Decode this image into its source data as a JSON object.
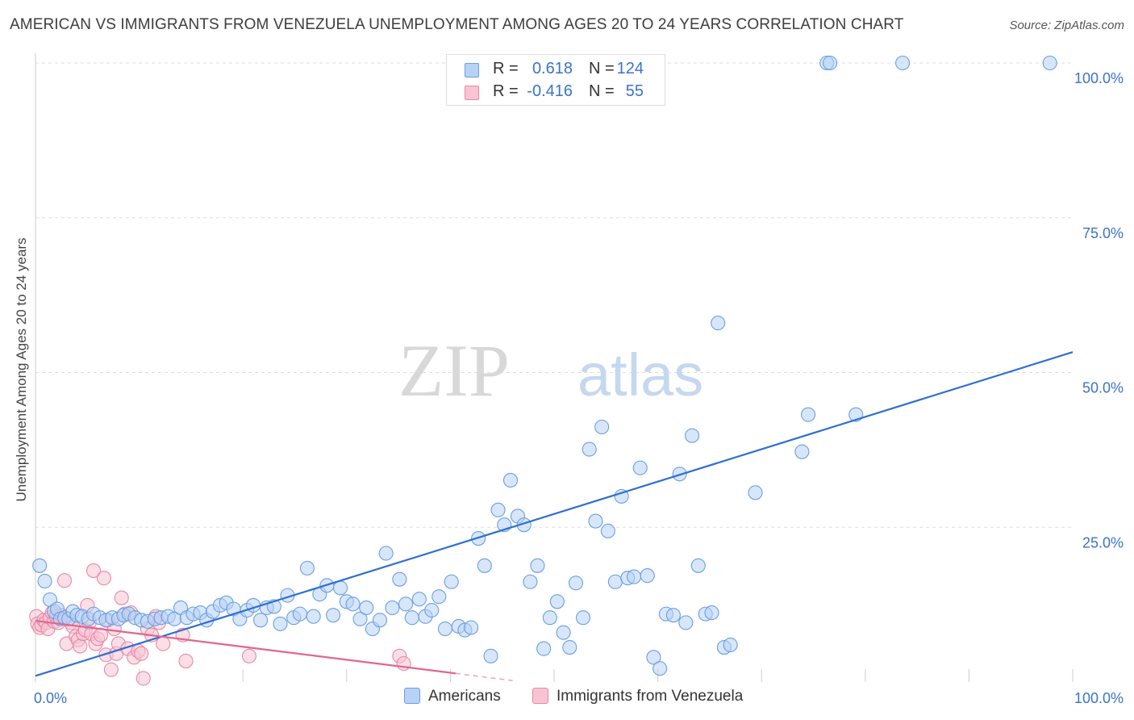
{
  "title": "AMERICAN VS IMMIGRANTS FROM VENEZUELA UNEMPLOYMENT AMONG AGES 20 TO 24 YEARS CORRELATION CHART",
  "source": "Source: ZipAtlas.com",
  "watermark": {
    "zip": "ZIP",
    "atlas": "atlas"
  },
  "stats": [
    {
      "r_label": "R =",
      "r_value": "0.618",
      "n_label": "N =",
      "n_value": "124",
      "color": "#6a9fe0",
      "fill": "#b8d2f5"
    },
    {
      "r_label": "R =",
      "r_value": "-0.416",
      "n_label": "N =",
      "n_value": "55",
      "color": "#e888a8",
      "fill": "#f8c4d4"
    }
  ],
  "legend": [
    {
      "label": "Americans",
      "color": "#6a9fe0",
      "fill": "#b8d2f5"
    },
    {
      "label": "Immigrants from Venezuela",
      "color": "#e888a8",
      "fill": "#f8c4d4"
    }
  ],
  "colors": {
    "blue_line": "#2e6fd1",
    "pink_line": "#e0668f",
    "axis_text": "#3b73c7",
    "grid": "#dddddd"
  },
  "chart_data": {
    "type": "scatter",
    "title": "AMERICAN VS IMMIGRANTS FROM VENEZUELA UNEMPLOYMENT AMONG AGES 20 TO 24 YEARS CORRELATION CHART",
    "xlabel": "",
    "ylabel": "Unemployment Among Ages 20 to 24 years",
    "xlim": [
      0,
      100
    ],
    "ylim": [
      0,
      100
    ],
    "x_tick_labels": [
      "0.0%",
      "100.0%"
    ],
    "y_ticks": [
      25,
      50,
      75,
      100
    ],
    "y_tick_labels": [
      "25.0%",
      "50.0%",
      "75.0%",
      "100.0%"
    ],
    "grid": true,
    "legend_position": "bottom",
    "series": [
      {
        "name": "Americans",
        "color": "#6a9fe0",
        "trend": {
          "x": [
            0,
            100
          ],
          "y": [
            1.0,
            53.3
          ]
        },
        "points": [
          [
            0.4,
            18.8
          ],
          [
            0.9,
            16.3
          ],
          [
            1.4,
            13.3
          ],
          [
            1.8,
            11.4
          ],
          [
            2.1,
            11.8
          ],
          [
            2.4,
            10.2
          ],
          [
            2.8,
            10.4
          ],
          [
            3.2,
            10.2
          ],
          [
            3.6,
            11.4
          ],
          [
            4.0,
            10.8
          ],
          [
            4.5,
            10.6
          ],
          [
            5.1,
            10.2
          ],
          [
            5.6,
            11.0
          ],
          [
            6.2,
            10.4
          ],
          [
            6.8,
            10.0
          ],
          [
            7.4,
            10.4
          ],
          [
            8.0,
            10.2
          ],
          [
            8.5,
            10.8
          ],
          [
            9.0,
            11.0
          ],
          [
            9.6,
            10.4
          ],
          [
            10.2,
            10.0
          ],
          [
            10.8,
            9.8
          ],
          [
            11.5,
            10.2
          ],
          [
            12.1,
            10.4
          ],
          [
            12.8,
            10.6
          ],
          [
            13.4,
            10.2
          ],
          [
            14.0,
            12.0
          ],
          [
            14.6,
            10.4
          ],
          [
            15.2,
            11.0
          ],
          [
            15.9,
            11.2
          ],
          [
            16.5,
            10.0
          ],
          [
            17.1,
            11.4
          ],
          [
            17.8,
            12.4
          ],
          [
            18.4,
            12.8
          ],
          [
            19.1,
            11.8
          ],
          [
            19.7,
            10.2
          ],
          [
            20.4,
            11.6
          ],
          [
            21.0,
            12.4
          ],
          [
            21.7,
            10.0
          ],
          [
            22.3,
            12.0
          ],
          [
            23.0,
            12.2
          ],
          [
            23.6,
            9.4
          ],
          [
            24.3,
            14.0
          ],
          [
            24.9,
            10.4
          ],
          [
            25.5,
            11.0
          ],
          [
            26.2,
            18.4
          ],
          [
            26.8,
            10.6
          ],
          [
            27.4,
            14.2
          ],
          [
            28.1,
            15.6
          ],
          [
            28.7,
            10.8
          ],
          [
            29.4,
            15.2
          ],
          [
            30.0,
            13.0
          ],
          [
            30.6,
            12.6
          ],
          [
            31.3,
            10.2
          ],
          [
            31.9,
            12.0
          ],
          [
            32.5,
            8.6
          ],
          [
            33.2,
            10.0
          ],
          [
            33.8,
            20.8
          ],
          [
            34.4,
            12.0
          ],
          [
            35.1,
            16.6
          ],
          [
            35.7,
            12.6
          ],
          [
            36.3,
            10.4
          ],
          [
            37.0,
            13.4
          ],
          [
            37.6,
            10.6
          ],
          [
            38.2,
            11.6
          ],
          [
            38.9,
            13.8
          ],
          [
            39.5,
            8.6
          ],
          [
            40.1,
            16.2
          ],
          [
            40.8,
            9.0
          ],
          [
            41.4,
            8.4
          ],
          [
            42.0,
            8.8
          ],
          [
            42.7,
            23.2
          ],
          [
            43.3,
            18.8
          ],
          [
            43.9,
            4.2
          ],
          [
            44.6,
            27.8
          ],
          [
            45.2,
            25.4
          ],
          [
            45.8,
            32.6
          ],
          [
            46.5,
            26.8
          ],
          [
            47.1,
            25.4
          ],
          [
            47.7,
            16.2
          ],
          [
            48.4,
            18.8
          ],
          [
            49.0,
            5.4
          ],
          [
            49.6,
            10.4
          ],
          [
            50.3,
            13.0
          ],
          [
            50.9,
            8.0
          ],
          [
            51.5,
            5.6
          ],
          [
            52.1,
            16.0
          ],
          [
            52.8,
            10.4
          ],
          [
            53.4,
            37.6
          ],
          [
            54.0,
            26.0
          ],
          [
            54.6,
            41.2
          ],
          [
            55.2,
            24.4
          ],
          [
            55.9,
            16.2
          ],
          [
            56.5,
            30.0
          ],
          [
            57.1,
            16.8
          ],
          [
            57.7,
            17.0
          ],
          [
            58.3,
            34.6
          ],
          [
            59.0,
            17.2
          ],
          [
            59.6,
            4.0
          ],
          [
            60.2,
            2.2
          ],
          [
            60.8,
            11.0
          ],
          [
            61.5,
            10.8
          ],
          [
            62.1,
            33.6
          ],
          [
            62.7,
            9.6
          ],
          [
            63.3,
            39.8
          ],
          [
            63.9,
            18.8
          ],
          [
            64.6,
            11.0
          ],
          [
            65.2,
            11.2
          ],
          [
            65.8,
            58.0
          ],
          [
            66.4,
            5.6
          ],
          [
            67.0,
            6.0
          ],
          [
            69.4,
            30.6
          ],
          [
            73.9,
            37.2
          ],
          [
            74.5,
            43.2
          ],
          [
            76.3,
            100
          ],
          [
            76.6,
            100
          ],
          [
            79.1,
            43.2
          ],
          [
            83.6,
            100
          ],
          [
            97.8,
            100
          ]
        ]
      },
      {
        "name": "Immigrants from Venezuela",
        "color": "#e888a8",
        "trend": {
          "x": [
            0,
            40.5
          ],
          "y": [
            9.9,
            1.4
          ]
        },
        "points": [
          [
            0.1,
            10.6
          ],
          [
            0.2,
            9.4
          ],
          [
            0.4,
            8.8
          ],
          [
            0.6,
            9.2
          ],
          [
            0.8,
            10.0
          ],
          [
            1.0,
            9.6
          ],
          [
            1.2,
            8.6
          ],
          [
            1.4,
            10.4
          ],
          [
            1.6,
            11.2
          ],
          [
            1.8,
            9.8
          ],
          [
            2.0,
            10.6
          ],
          [
            2.2,
            9.6
          ],
          [
            2.5,
            10.8
          ],
          [
            2.8,
            16.4
          ],
          [
            3.0,
            6.2
          ],
          [
            3.2,
            10.2
          ],
          [
            3.4,
            9.6
          ],
          [
            3.6,
            9.0
          ],
          [
            3.9,
            7.4
          ],
          [
            4.1,
            6.8
          ],
          [
            4.3,
            5.8
          ],
          [
            4.6,
            7.8
          ],
          [
            4.8,
            8.4
          ],
          [
            5.0,
            12.4
          ],
          [
            5.2,
            9.6
          ],
          [
            5.4,
            7.8
          ],
          [
            5.6,
            18.0
          ],
          [
            5.8,
            6.2
          ],
          [
            6.0,
            7.0
          ],
          [
            6.3,
            7.6
          ],
          [
            6.6,
            16.8
          ],
          [
            6.8,
            4.4
          ],
          [
            7.0,
            10.0
          ],
          [
            7.3,
            2.0
          ],
          [
            7.6,
            8.6
          ],
          [
            7.8,
            4.6
          ],
          [
            8.0,
            6.2
          ],
          [
            8.3,
            13.6
          ],
          [
            8.6,
            11.0
          ],
          [
            8.9,
            5.4
          ],
          [
            9.2,
            11.2
          ],
          [
            9.5,
            4.0
          ],
          [
            9.9,
            5.0
          ],
          [
            10.2,
            4.6
          ],
          [
            10.4,
            0.6
          ],
          [
            10.8,
            8.6
          ],
          [
            11.2,
            7.6
          ],
          [
            11.6,
            10.6
          ],
          [
            11.9,
            9.6
          ],
          [
            12.3,
            6.2
          ],
          [
            14.2,
            7.6
          ],
          [
            14.5,
            3.4
          ],
          [
            20.6,
            4.2
          ],
          [
            35.1,
            4.2
          ],
          [
            35.5,
            3.0
          ]
        ]
      }
    ]
  }
}
